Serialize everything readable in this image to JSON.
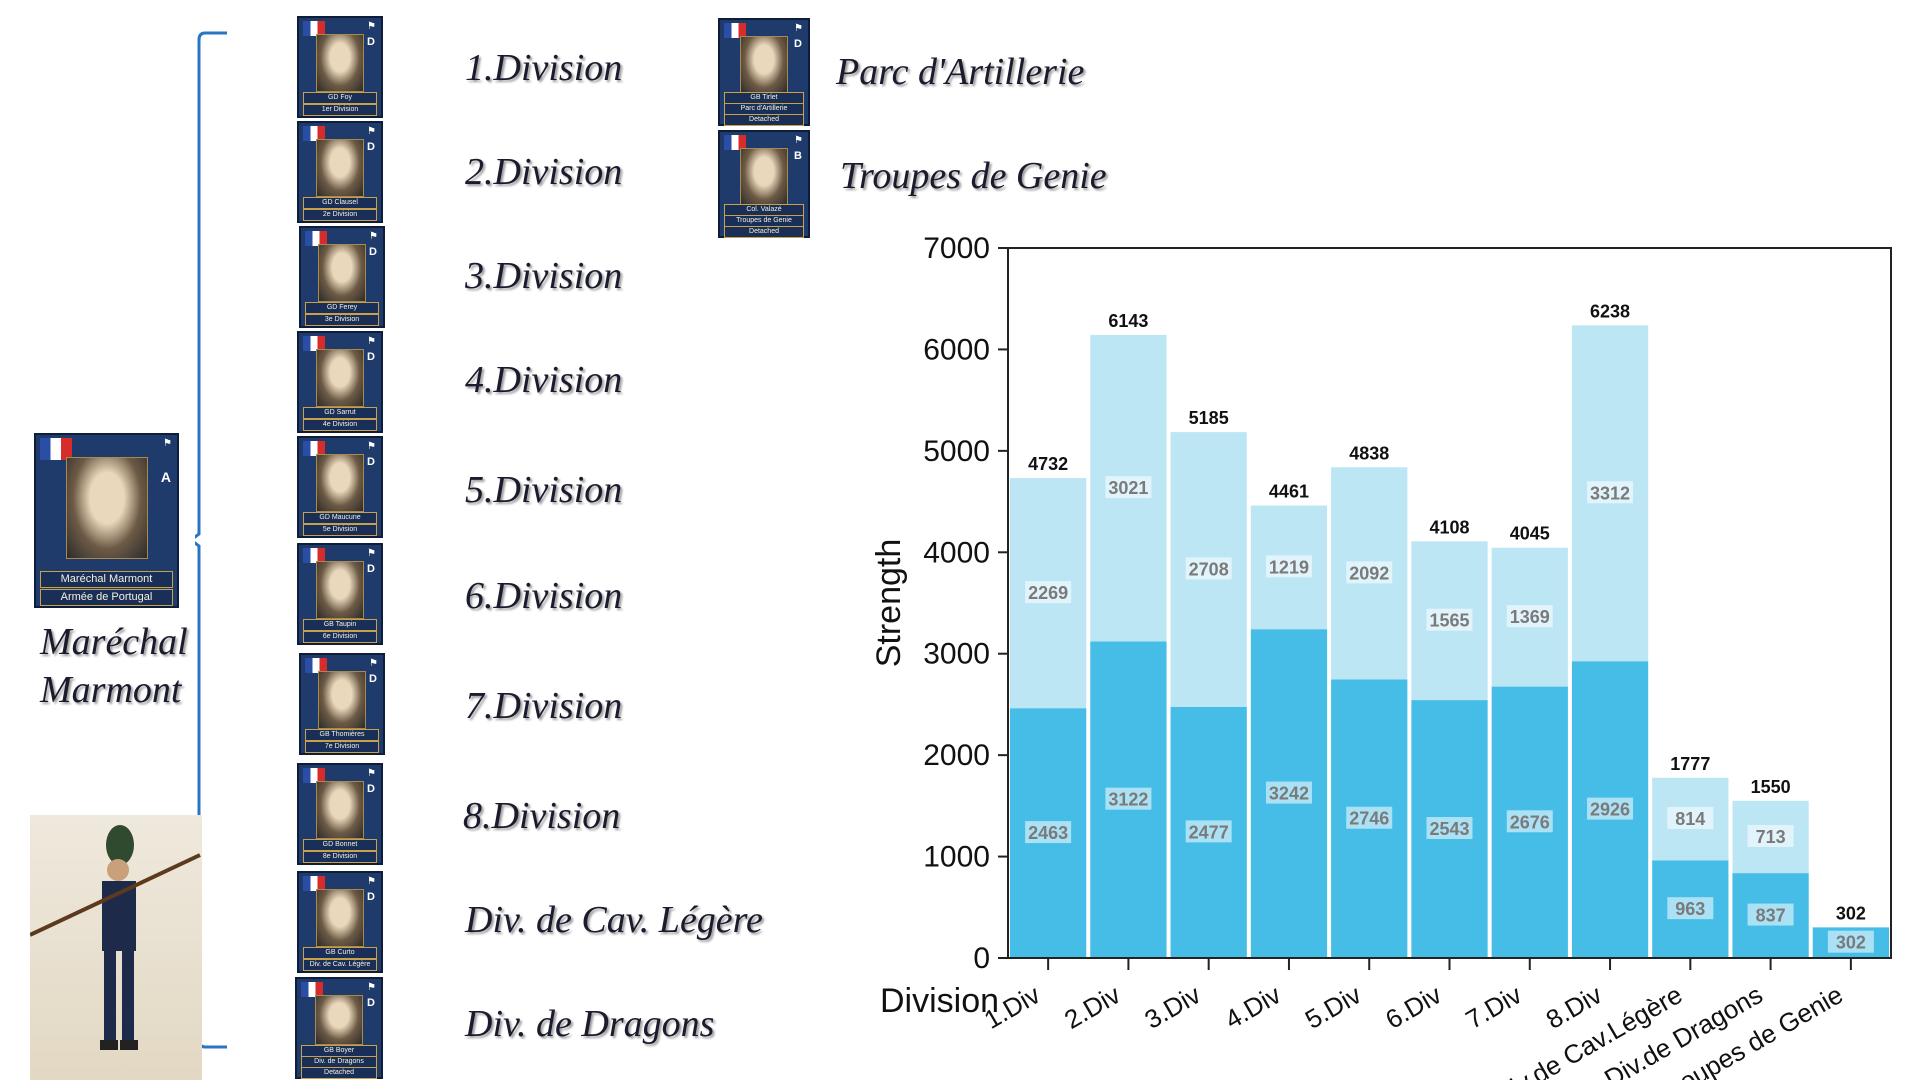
{
  "commander": {
    "name_line1": "Maréchal",
    "name_line2": "Marmont",
    "card_caption1": "Maréchal Marmont",
    "card_caption2": "Armée de Portugal",
    "card_letter": "A"
  },
  "divisions": [
    {
      "label": "1.Division",
      "caption1": "GD Foy",
      "caption2": "1er Division",
      "letter": "D"
    },
    {
      "label": "2.Division",
      "caption1": "GD Clausel",
      "caption2": "2e Division",
      "letter": "D"
    },
    {
      "label": "3.Division",
      "caption1": "GD Ferey",
      "caption2": "3e Division",
      "letter": "D"
    },
    {
      "label": "4.Division",
      "caption1": "GD Sarrut",
      "caption2": "4e Division",
      "letter": "D"
    },
    {
      "label": "5.Division",
      "caption1": "GD Maucune",
      "caption2": "5e Division",
      "letter": "D"
    },
    {
      "label": "6.Division",
      "caption1": "GB Taupin",
      "caption2": "6e Division",
      "letter": "D"
    },
    {
      "label": "7.Division",
      "caption1": "GB Thomières",
      "caption2": "7e Division",
      "letter": "D"
    },
    {
      "label": "8.Division",
      "caption1": "GD Bonnet",
      "caption2": "8e Division",
      "letter": "D"
    },
    {
      "label": "Div. de Cav. Légère",
      "caption1": "GB Curto",
      "caption2": "Div. de Cav. Légère",
      "letter": "D"
    },
    {
      "label": "Div. de Dragons",
      "caption1": "GB Boyer",
      "caption2": "Div. de Dragons",
      "caption3": "Detached",
      "letter": "D"
    }
  ],
  "other_units": [
    {
      "label": "Parc d'Artillerie",
      "caption1": "GB Tirlet",
      "caption2": "Parc d'Artillerie",
      "caption3": "Detached",
      "letter": "D"
    },
    {
      "label": "Troupes de Genie",
      "caption1": "Col. Valazé",
      "caption2": "Troupes de Genie",
      "caption3": "Detached",
      "letter": "B"
    }
  ],
  "chart_data": {
    "type": "bar",
    "stacked": true,
    "categories": [
      "1.Div",
      "2.Div",
      "3.Div",
      "4.Div",
      "5.Div",
      "6.Div",
      "7.Div",
      "8.Div",
      "Div.de Cav.Légère",
      "Div.de Dragons",
      "Troupes de Genie"
    ],
    "series": [
      {
        "values": [
          2463,
          3122,
          2477,
          3242,
          2746,
          2543,
          2676,
          2926,
          963,
          837,
          302
        ],
        "color": "#45bde6"
      },
      {
        "values": [
          2269,
          3021,
          2708,
          1219,
          2092,
          1565,
          1369,
          3312,
          814,
          713,
          0
        ],
        "color": "#bde6f5"
      }
    ],
    "totals": [
      4732,
      6143,
      5185,
      4461,
      4838,
      4108,
      4045,
      6238,
      1777,
      1550,
      302
    ],
    "xlabel": "Division",
    "ylabel": "Strength",
    "ylim": [
      0,
      7000
    ],
    "yticks": [
      0,
      1000,
      2000,
      3000,
      4000,
      5000,
      6000,
      7000
    ],
    "grid": false,
    "legend": "none"
  }
}
